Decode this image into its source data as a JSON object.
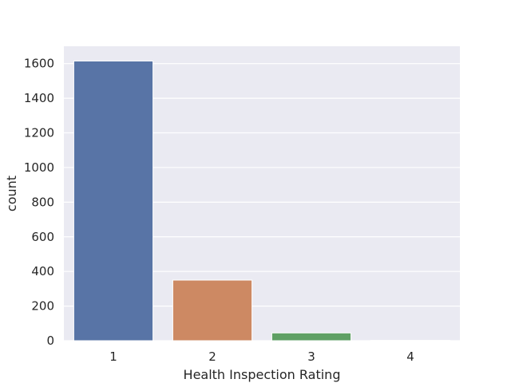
{
  "chart_data": {
    "type": "bar",
    "title": "",
    "xlabel": "Health Inspection Rating",
    "ylabel": "count",
    "categories": [
      "1",
      "2",
      "3",
      "4"
    ],
    "values": [
      1615,
      350,
      45,
      2
    ],
    "ylim": [
      0,
      1700
    ],
    "yticks": [
      0,
      200,
      400,
      600,
      800,
      1000,
      1200,
      1400,
      1600
    ],
    "grid": true,
    "legend": "none",
    "colors": [
      "#5874a6",
      "#cd8963",
      "#5fa064",
      "#c75055"
    ],
    "background": "#eaeaf2"
  }
}
